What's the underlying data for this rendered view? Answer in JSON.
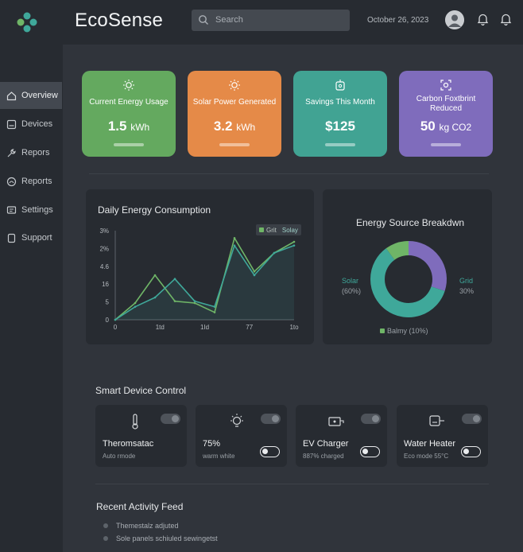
{
  "app": {
    "brand": "EcoSense"
  },
  "header": {
    "search_placeholder": "Search",
    "date": "October 26, 2023"
  },
  "sidebar": {
    "items": [
      {
        "label": "Overview",
        "icon": "home-icon",
        "active": true
      },
      {
        "label": "Devices",
        "icon": "devices-icon"
      },
      {
        "label": "Repors",
        "icon": "wrench-icon"
      },
      {
        "label": "Reports",
        "icon": "gauge-icon"
      },
      {
        "label": "Settings",
        "icon": "settings-icon"
      },
      {
        "label": "Support",
        "icon": "support-icon"
      }
    ]
  },
  "stats": [
    {
      "label": "Current Energy Usage",
      "value": "1.5",
      "unit": "kWh",
      "icon": "sun-icon",
      "color": "#64a95f"
    },
    {
      "label": "Solar Power Generated",
      "value": "3.2",
      "unit": "kWh",
      "icon": "sun-icon",
      "color": "#e58a48"
    },
    {
      "label": "Savings This Month",
      "value": "$125",
      "unit": "",
      "icon": "piggy-bank-icon",
      "color": "#41a393"
    },
    {
      "label": "Carbon Foxtbrint Reduced",
      "value": "50",
      "unit": "kg CO2",
      "icon": "leaf-icon",
      "color": "#7f6cbc"
    }
  ],
  "consumption": {
    "title": "Daily Energy Consumption",
    "legend": [
      "Grit",
      "Solay"
    ]
  },
  "breakdown": {
    "title": "Energy Source Breakdwn",
    "solar_label": "Solar",
    "solar_pct": "(60%)",
    "grid_label": "Grid",
    "grid_pct": "30%",
    "battery_label": "Balmy (10%)"
  },
  "chart_data": [
    {
      "type": "line",
      "title": "Daily Energy Consumption",
      "x_ticks": [
        "0",
        "1td",
        "1Id",
        "77",
        "1to"
      ],
      "y_ticks": [
        "0",
        "5",
        "16",
        "4.6",
        "2%",
        "3%"
      ],
      "x": [
        0,
        1,
        2,
        3,
        4,
        5,
        6,
        7,
        8,
        9
      ],
      "series": [
        {
          "name": "Grit",
          "color": "#6fb567",
          "values": [
            0,
            4.5,
            12,
            5,
            4.5,
            2,
            22,
            13,
            18,
            21
          ]
        },
        {
          "name": "Solay",
          "color": "#3fa89a",
          "values": [
            0,
            3.5,
            6,
            11,
            5,
            3.5,
            20,
            12,
            18,
            20
          ]
        }
      ],
      "ylim": [
        0,
        24
      ]
    },
    {
      "type": "pie",
      "title": "Energy Source Breakdwn",
      "slices": [
        {
          "label": "Solar",
          "value": 60,
          "color": "#3fa89a"
        },
        {
          "label": "Grid",
          "value": 30,
          "color": "#7f6cbc"
        },
        {
          "label": "Balmy",
          "value": 10,
          "color": "#6fb567"
        }
      ]
    }
  ],
  "devices": {
    "title": "Smart Device Control",
    "items": [
      {
        "name": "Theromsatac",
        "sub": "Auto rmode",
        "icon": "thermometer-icon"
      },
      {
        "name": "75%",
        "sub": "warm white",
        "icon": "bulb-icon"
      },
      {
        "name": "EV Charger",
        "sub": "887% charged",
        "icon": "ev-charger-icon"
      },
      {
        "name": "Water Heater",
        "sub": "Eco mode 55°C",
        "icon": "water-heater-icon"
      }
    ]
  },
  "feed": {
    "title": "Recent Activity Feed",
    "items": [
      "Themestalz adjuted",
      "Sole panels schiuled sewingetst"
    ]
  }
}
